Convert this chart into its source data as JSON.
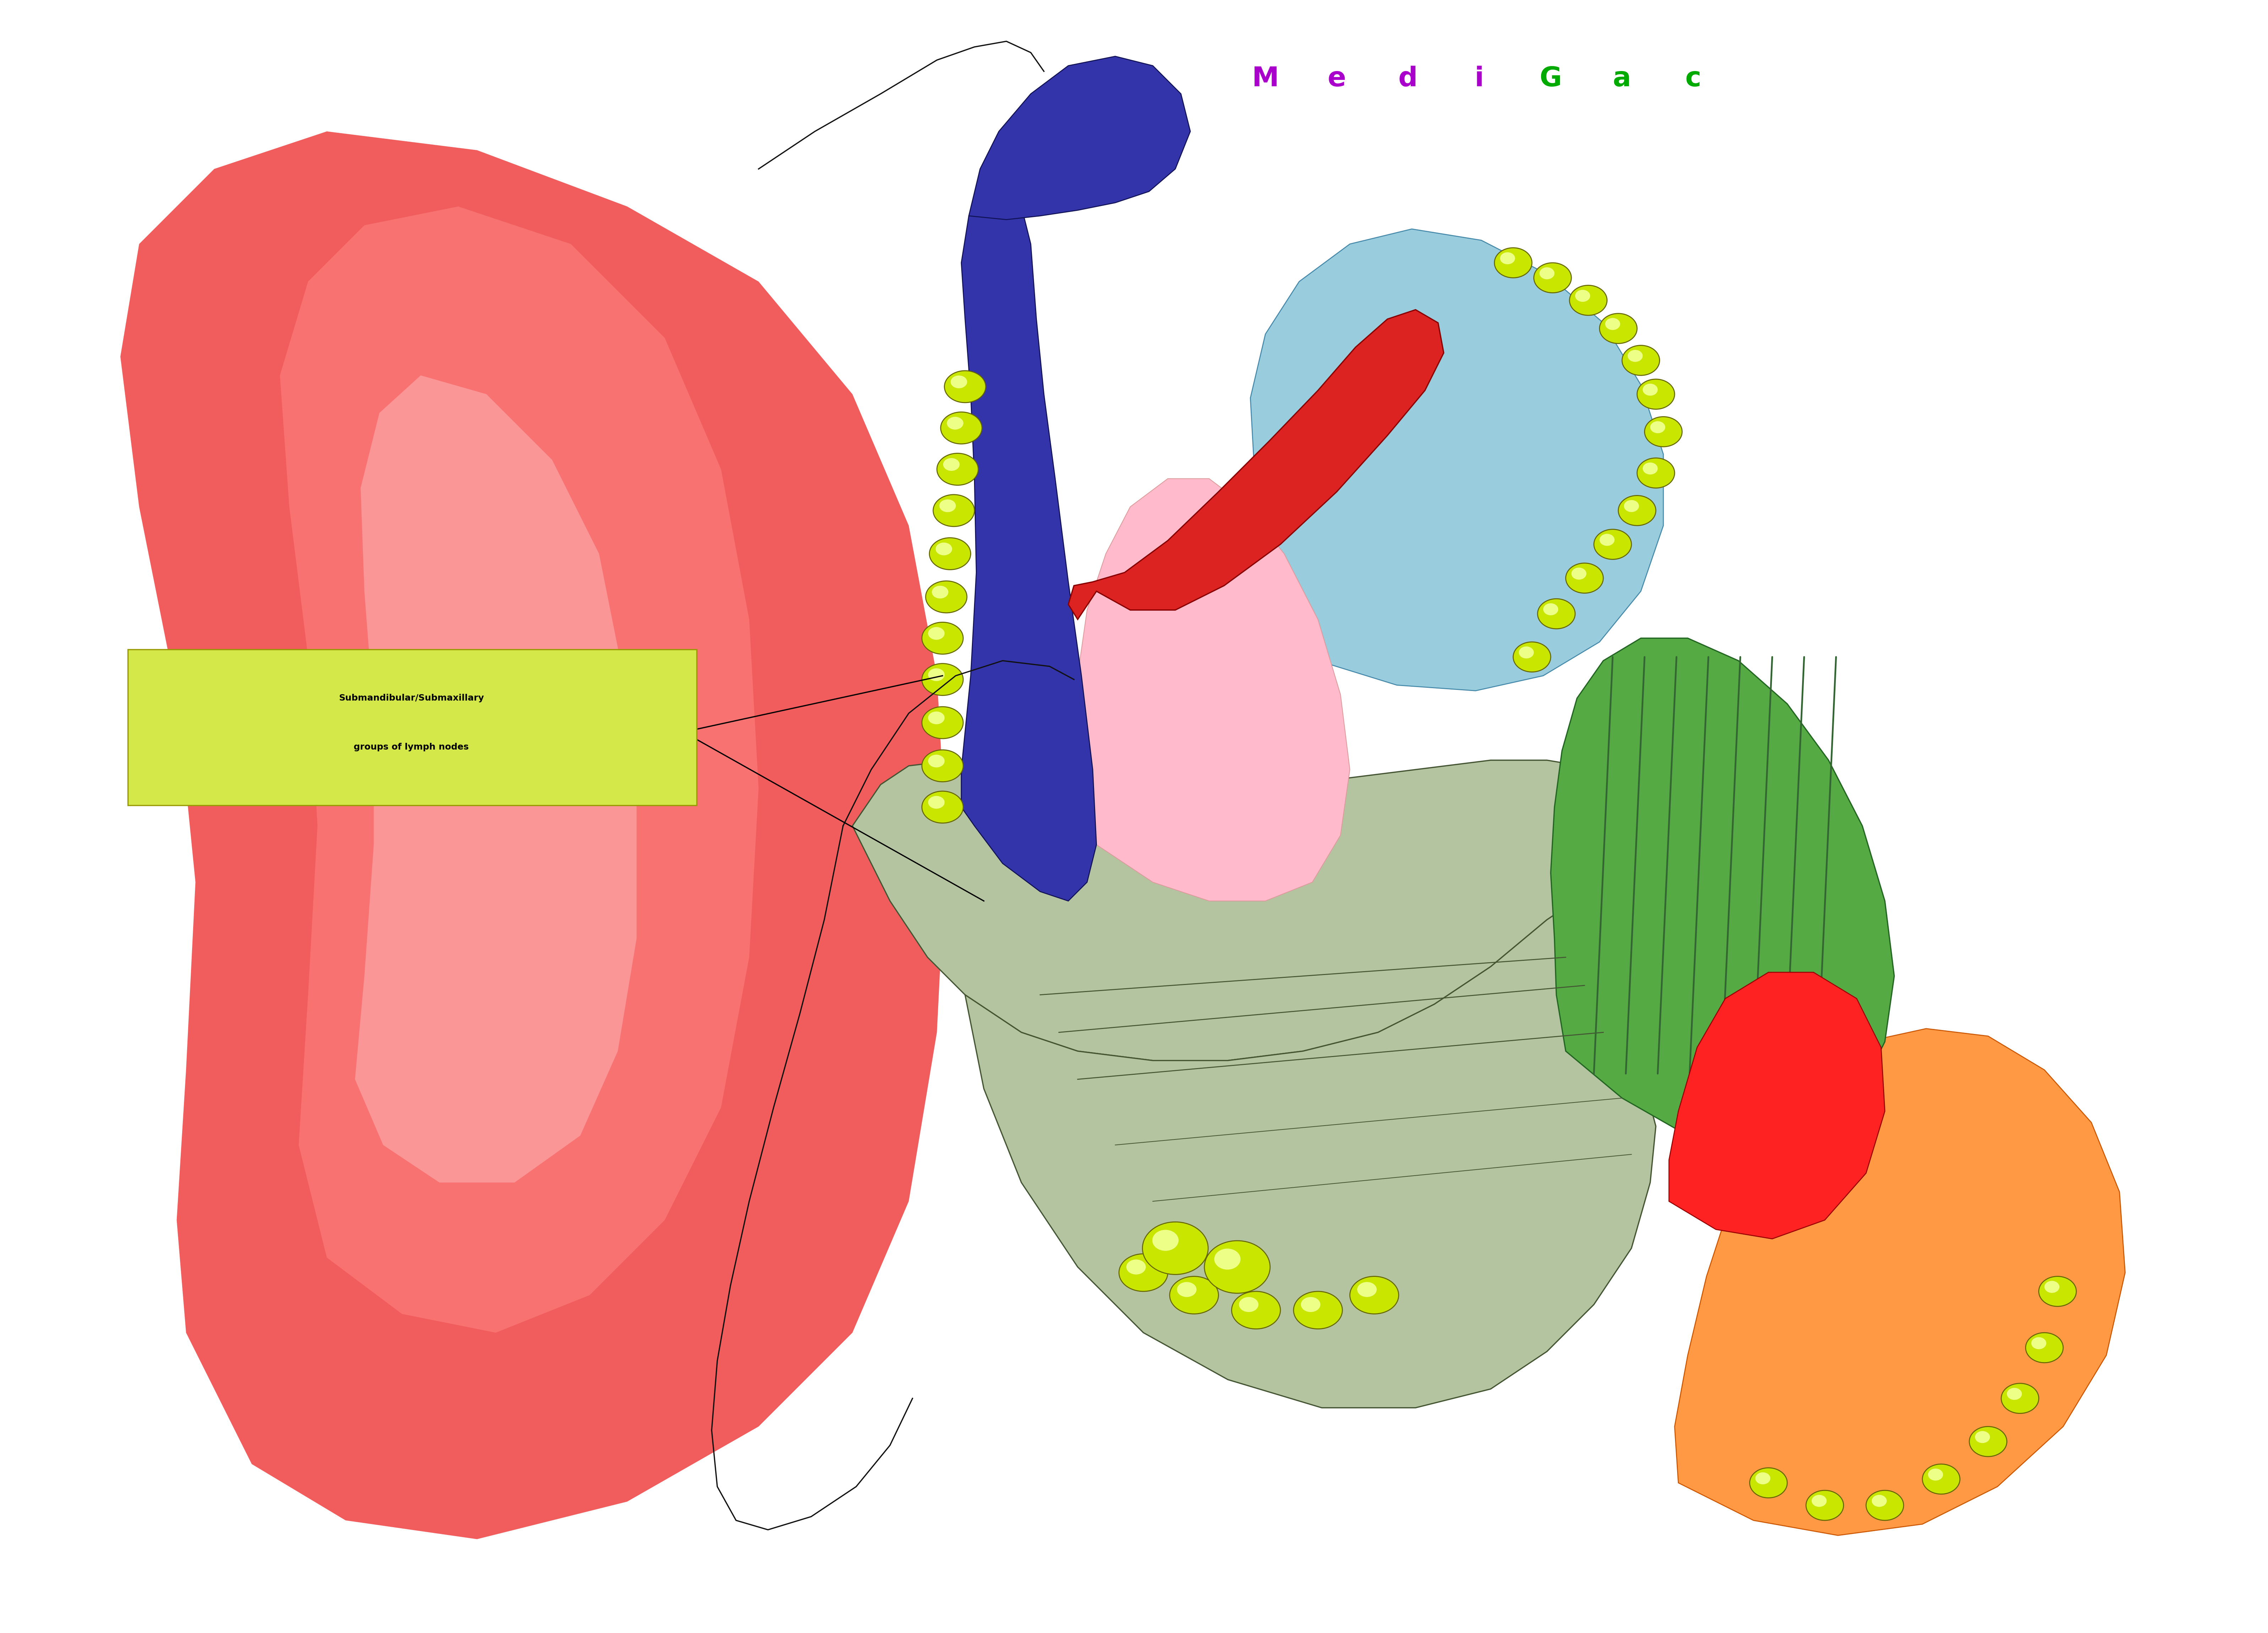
{
  "title": "MediGac",
  "label_text_line1": "Submandibular/Submaxillary",
  "label_text_line2": "groups of lymph nodes",
  "label_box_color": "#d4e84a",
  "label_text_color": "#000000",
  "background_color": "#ffffff",
  "lymph_node_color": "#c8e600",
  "lymph_node_outline": "#666600",
  "skin_color": "#ee3333",
  "skin_color_light": "#ffaaaa",
  "skin_color2": "#ff6666",
  "bone_color": "#b5c4a0",
  "bone_outline": "#445533",
  "muscle_green": "#55aa44",
  "muscle_stripe": "#336633",
  "purple_vein": "#3333aa",
  "purple_outline": "#111155",
  "light_blue": "#99ccdd",
  "light_blue2": "#bbddee",
  "red_vessel": "#dd2222",
  "red_vessel_outline": "#880000",
  "orange_fat": "#ff9944",
  "orange_outline": "#cc5500",
  "pink_tissue": "#ffbbcc",
  "dark_outline": "#111111",
  "red_bright": "#ff2222",
  "title_medi_color": "#aa00cc",
  "title_gac_color": "#00aa00",
  "label_box_edge": "#999900"
}
